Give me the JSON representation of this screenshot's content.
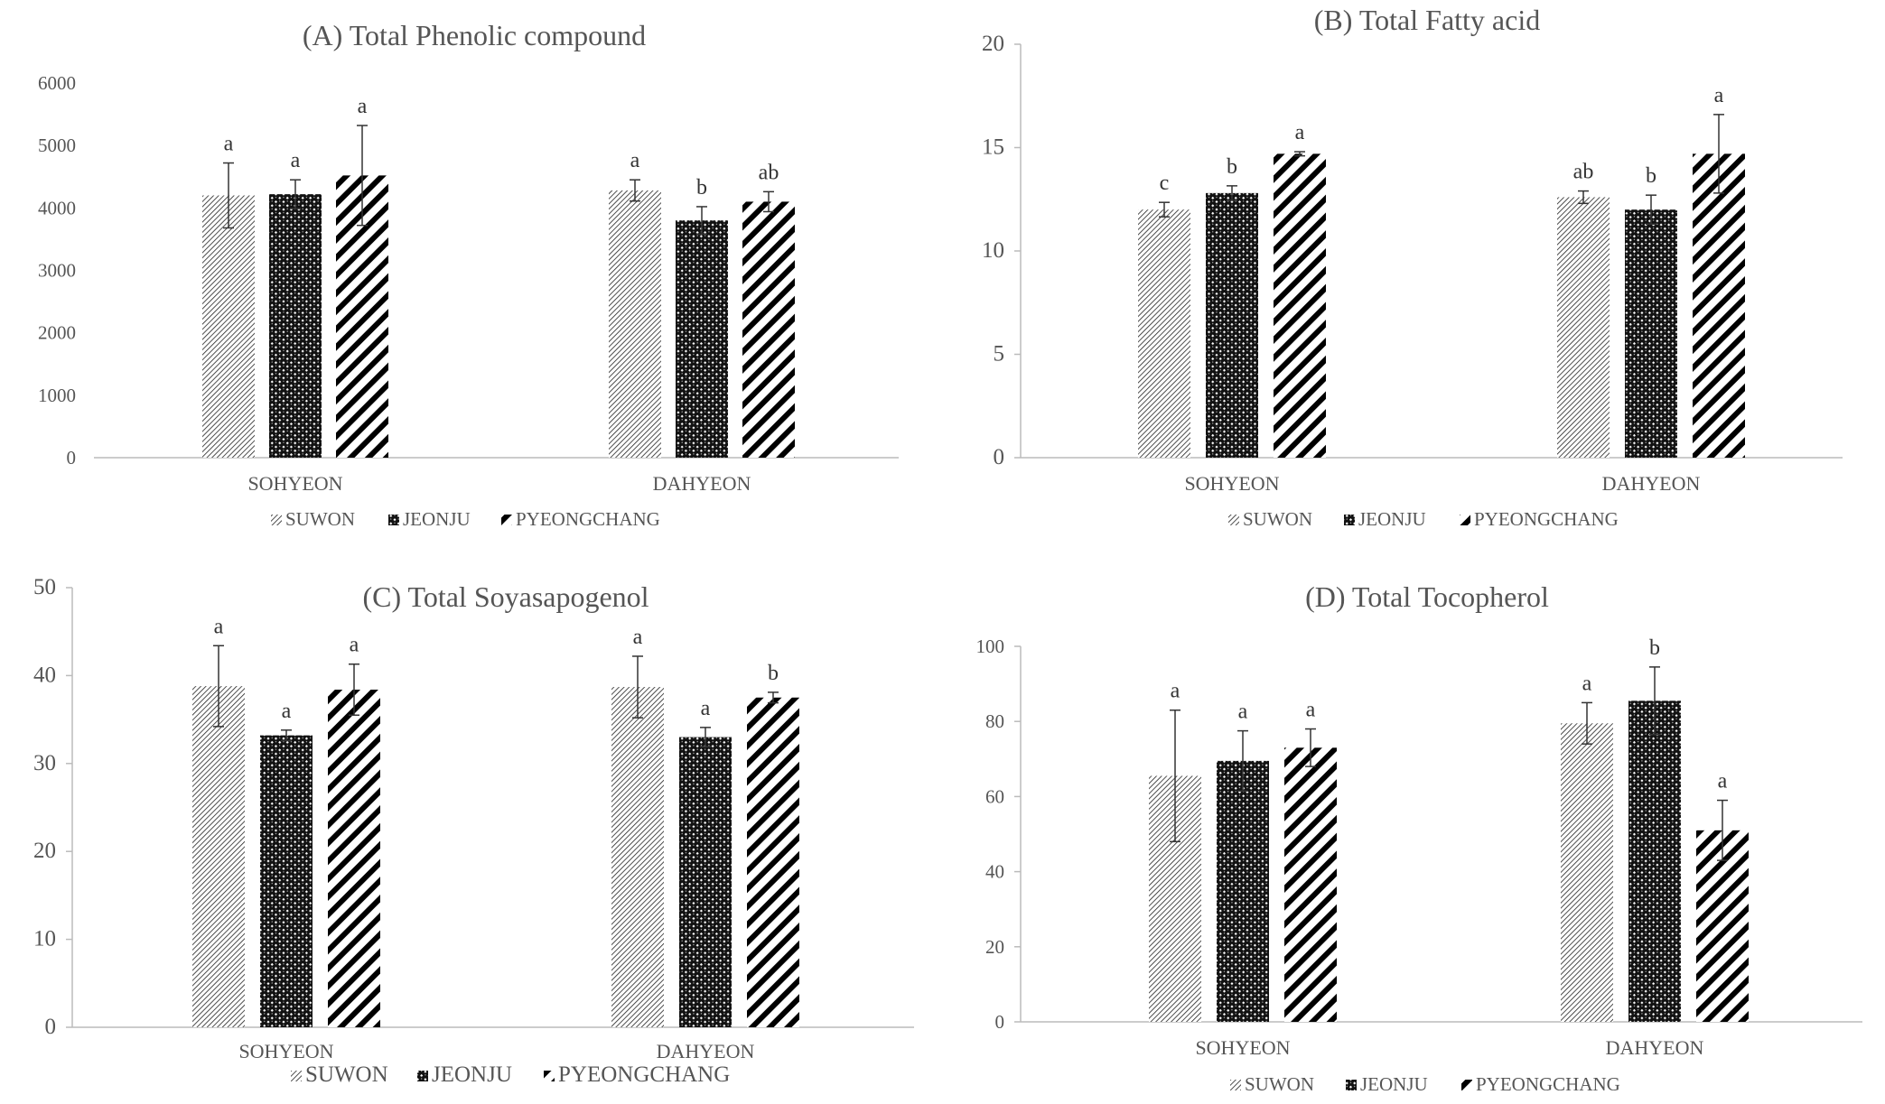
{
  "chart_data": [
    {
      "type": "bar",
      "title": "(A) Total Phenolic compound",
      "categories": [
        "SOHYEON",
        "DAHYEON"
      ],
      "ylim": [
        0,
        6000
      ],
      "yticks": [
        "0",
        "1000",
        "2000",
        "3000",
        "4000",
        "5000",
        "6000"
      ],
      "legend": "bottom",
      "grid": false,
      "series": [
        {
          "name": "SUWON",
          "values": [
            4200,
            4280
          ],
          "errors": [
            520,
            170
          ],
          "letters": [
            "a",
            "a"
          ]
        },
        {
          "name": "JEONJU",
          "values": [
            4220,
            3800
          ],
          "errors": [
            230,
            220
          ],
          "letters": [
            "a",
            "b"
          ]
        },
        {
          "name": "PYEONGCHANG",
          "values": [
            4520,
            4100
          ],
          "errors": [
            800,
            160
          ],
          "letters": [
            "a",
            "ab"
          ]
        }
      ]
    },
    {
      "type": "bar",
      "title": "(B) Total Fatty acid",
      "categories": [
        "SOHYEON",
        "DAHYEON"
      ],
      "ylim": [
        0,
        20
      ],
      "yticks": [
        "0",
        "5",
        "10",
        "15",
        "20"
      ],
      "legend": "bottom",
      "grid": false,
      "series": [
        {
          "name": "SUWON",
          "values": [
            12.0,
            12.6
          ],
          "errors": [
            0.35,
            0.3
          ],
          "letters": [
            "c",
            "ab"
          ]
        },
        {
          "name": "JEONJU",
          "values": [
            12.8,
            12.0
          ],
          "errors": [
            0.35,
            0.7
          ],
          "letters": [
            "b",
            "b"
          ]
        },
        {
          "name": "PYEONGCHANG",
          "values": [
            14.7,
            14.7
          ],
          "errors": [
            0.1,
            1.9
          ],
          "letters": [
            "a",
            "a"
          ]
        }
      ]
    },
    {
      "type": "bar",
      "title": "(C) Total Soyasapogenol",
      "categories": [
        "SOHYEON",
        "DAHYEON"
      ],
      "ylim": [
        0,
        50
      ],
      "yticks": [
        "0",
        "10",
        "20",
        "30",
        "40",
        "50"
      ],
      "legend": "bottom",
      "grid": false,
      "series": [
        {
          "name": "SUWON",
          "values": [
            38.8,
            38.7
          ],
          "errors": [
            4.6,
            3.5
          ],
          "letters": [
            "a",
            "a"
          ]
        },
        {
          "name": "JEONJU",
          "values": [
            33.2,
            33.0
          ],
          "errors": [
            0.6,
            1.1
          ],
          "letters": [
            "a",
            "a"
          ]
        },
        {
          "name": "PYEONGCHANG",
          "values": [
            38.4,
            37.5
          ],
          "errors": [
            2.9,
            0.6
          ],
          "letters": [
            "a",
            "b"
          ]
        }
      ]
    },
    {
      "type": "bar",
      "title": "(D) Total Tocopherol",
      "categories": [
        "SOHYEON",
        "DAHYEON"
      ],
      "ylim": [
        0,
        100
      ],
      "yticks": [
        "0",
        "20",
        "40",
        "60",
        "80",
        "100"
      ],
      "legend": "bottom",
      "grid": false,
      "series": [
        {
          "name": "SUWON",
          "values": [
            65.5,
            79.5
          ],
          "errors": [
            17.5,
            5.5
          ],
          "letters": [
            "a",
            "a"
          ]
        },
        {
          "name": "JEONJU",
          "values": [
            69.5,
            85.5
          ],
          "errors": [
            8.0,
            9.0
          ],
          "letters": [
            "a",
            "b"
          ]
        },
        {
          "name": "PYEONGCHANG",
          "values": [
            73.0,
            51.0
          ],
          "errors": [
            5.0,
            8.0
          ],
          "letters": [
            "a",
            "a"
          ]
        }
      ]
    }
  ]
}
